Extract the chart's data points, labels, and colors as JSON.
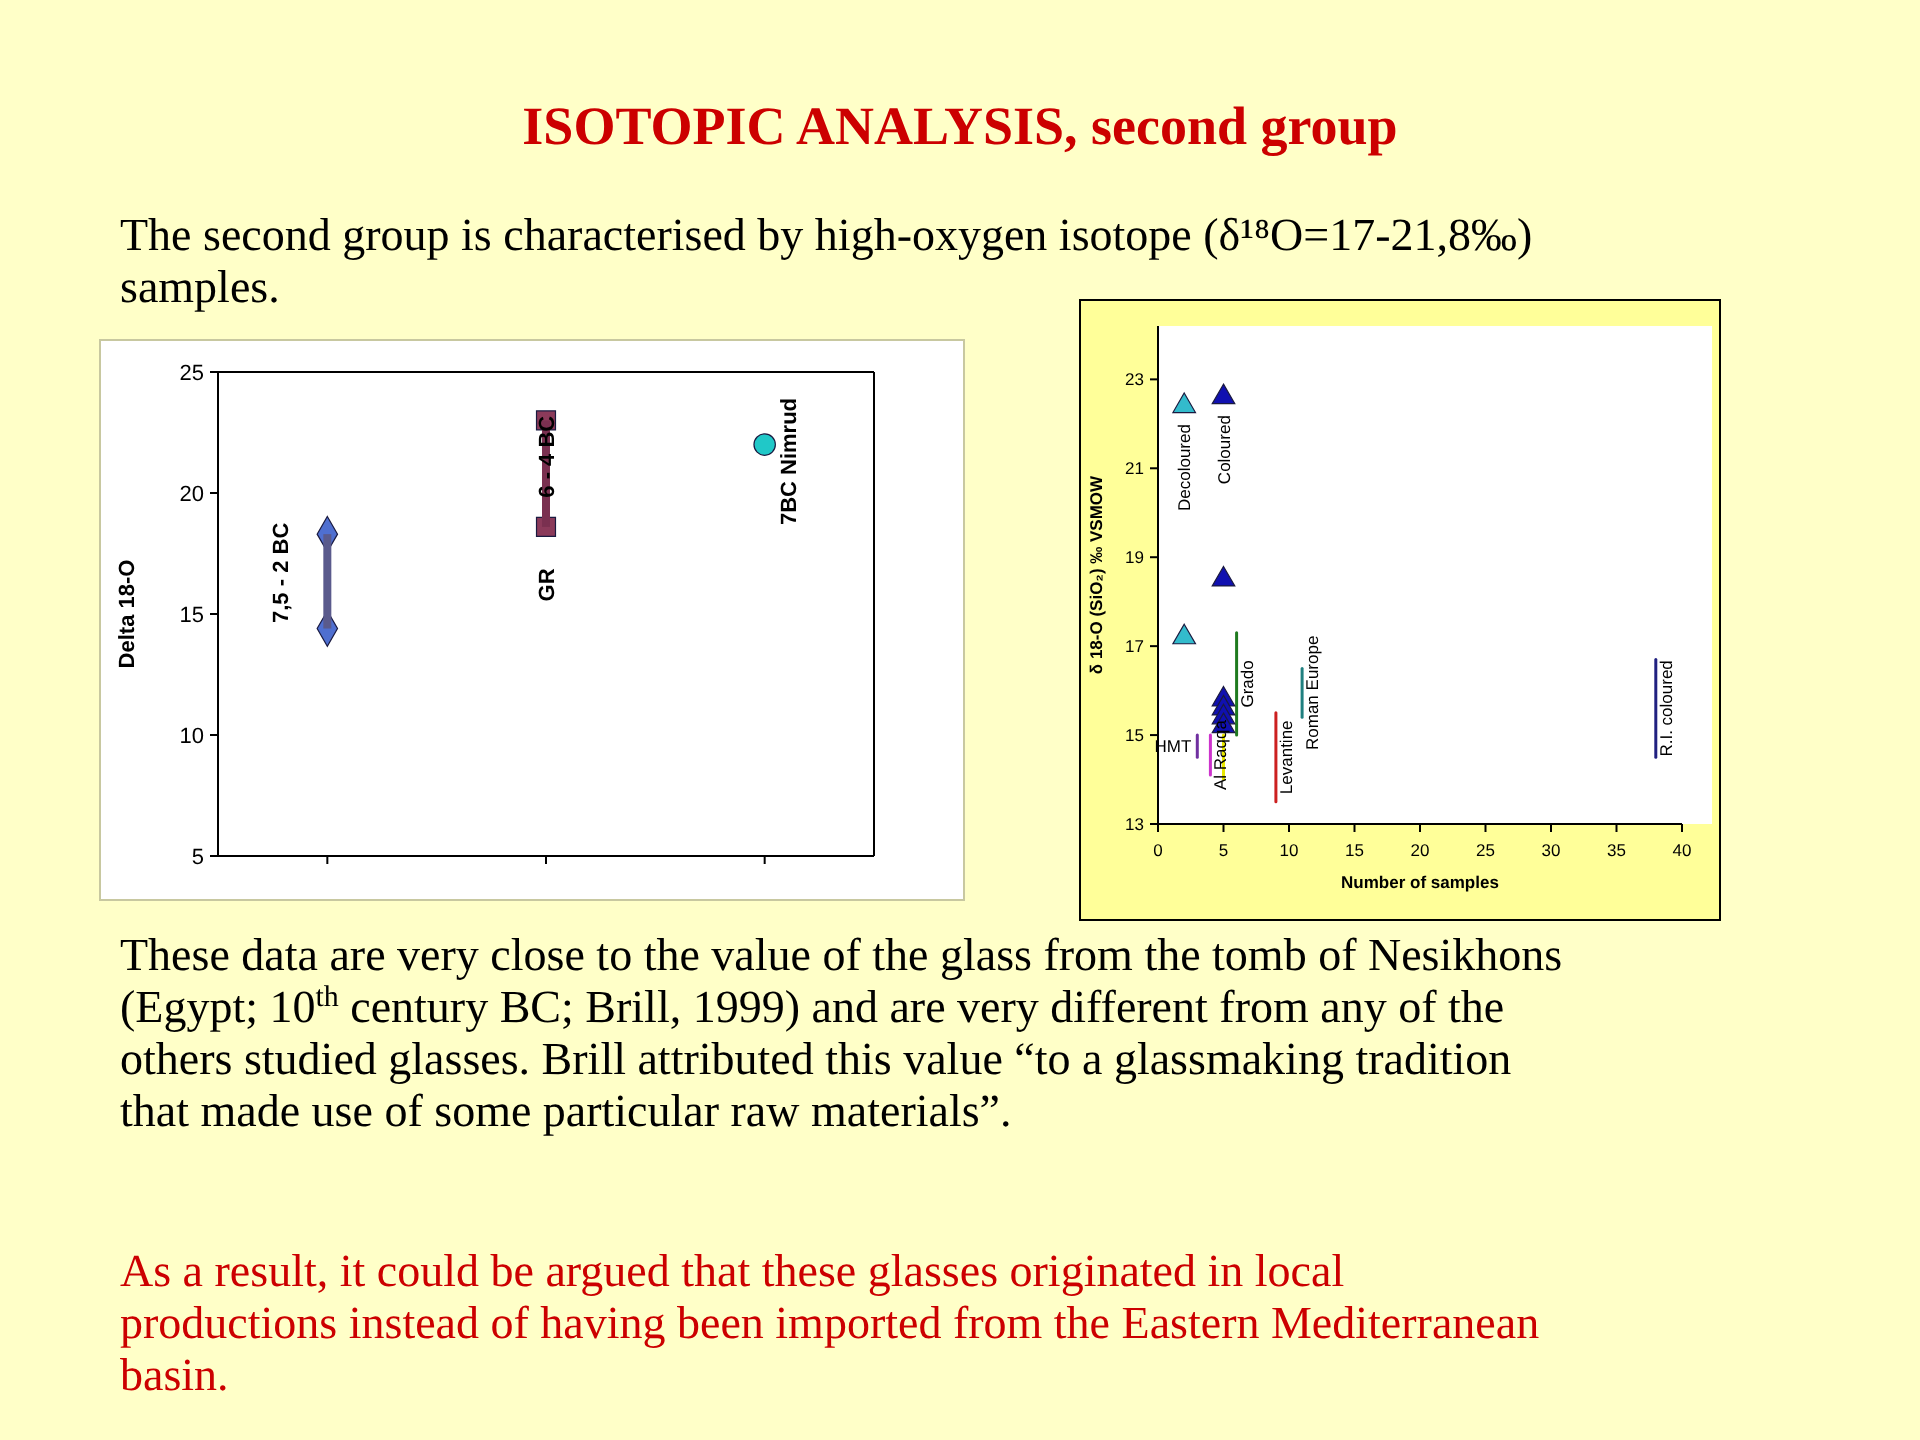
{
  "chart_data": [
    {
      "type": "other",
      "title": "ISOTOPIC ANALYSIS, second group",
      "annotations": [
        "The second group is characterised by high-oxygen isotope (δ¹⁸O=17-21,8‰) samples.",
        "These data are very close to the value of the glass from the tomb of Nesikhons (Egypt; 10$^{th}$ century BC; Brill, 1999) and are very different from any of the others studied glasses. Brill attributed this value “to a glassmaking tradition that made use of some particular raw materials”.",
        "As a result, it could be argued that these glasses originated in local productions instead of having been imported from the Eastern Mediterranean basin."
      ]
    },
    {
      "type": "scatter",
      "categories": [
        null,
        null,
        null
      ],
      "ylabel": "Delta 18-O",
      "ylim": [
        5,
        25
      ],
      "yticks": [
        5,
        10,
        15,
        20,
        25
      ],
      "series": [
        {
          "type": "bar",
          "base": [
            14.4,
            18.6,
            null
          ],
          "values": [
            3.9,
            4.4,
            null
          ],
          "colors": [
            "#5a5a8c",
            "#7a3050",
            null
          ]
        },
        {
          "color": "#4f6fd0",
          "marker": "diamond",
          "values": [
            14.4,
            null,
            null
          ]
        },
        {
          "color": "#4f6fd0",
          "marker": "diamond",
          "values": [
            18.3,
            null,
            null
          ]
        },
        {
          "color": "#8b3a5a",
          "marker": "square",
          "values": [
            null,
            18.6,
            null
          ]
        },
        {
          "color": "#8b3a5a",
          "marker": "square",
          "values": [
            null,
            23.0,
            null
          ]
        },
        {
          "color": "#20c8c8",
          "marker": "circle",
          "values": [
            null,
            null,
            22.0
          ]
        }
      ],
      "annotations": [
        "7,5 - 2 BC",
        "6 - 4 BC",
        "GR",
        "7BC Nimrud"
      ]
    },
    {
      "type": "scatter",
      "xlabel": "Number of samples",
      "ylabel": "δ 18-O (SiO₂) ‰ VSMOW",
      "xlim": [
        0,
        40
      ],
      "xticks": [
        0,
        5,
        10,
        15,
        20,
        25,
        30,
        35,
        40
      ],
      "ylim": [
        13,
        24.2
      ],
      "yticks": [
        13,
        15,
        17,
        19,
        21,
        23
      ],
      "marker": "triangle",
      "series": [
        {
          "name": "Decoloured",
          "color": "#33bbcc",
          "x": [
            2,
            2
          ],
          "values": [
            22.4,
            17.2
          ]
        },
        {
          "name": "Coloured",
          "color": "#1010b0",
          "x": [
            5,
            5,
            5,
            5,
            5,
            5
          ],
          "values": [
            22.6,
            18.5,
            15.8,
            15.6,
            15.4,
            15.2
          ]
        },
        {
          "type": "line",
          "name": "HMT",
          "color": "#7030a0",
          "marker": "none",
          "x": [
            3,
            3
          ],
          "values": [
            14.5,
            15.0
          ]
        },
        {
          "type": "line",
          "name": "Al Raqqa",
          "color": "#cc33cc",
          "marker": "none",
          "x": [
            4,
            4
          ],
          "values": [
            14.1,
            15.0
          ]
        },
        {
          "type": "line",
          "color": "#e8e800",
          "marker": "none",
          "x": [
            5,
            5
          ],
          "values": [
            14.0,
            15.0
          ]
        },
        {
          "type": "line",
          "name": "Grado",
          "color": "#1f7a1f",
          "marker": "none",
          "x": [
            6,
            6
          ],
          "values": [
            15.0,
            17.3
          ]
        },
        {
          "type": "line",
          "name": "Levantine",
          "color": "#cc2020",
          "marker": "none",
          "x": [
            9,
            9
          ],
          "values": [
            13.5,
            15.5
          ]
        },
        {
          "type": "line",
          "name": "Roman Europe",
          "color": "#208080",
          "marker": "none",
          "x": [
            11,
            11
          ],
          "values": [
            15.4,
            16.5
          ]
        },
        {
          "type": "line",
          "name": "R.I. coloured",
          "color": "#202080",
          "marker": "none",
          "x": [
            38,
            38
          ],
          "values": [
            14.5,
            16.7
          ]
        }
      ]
    }
  ]
}
